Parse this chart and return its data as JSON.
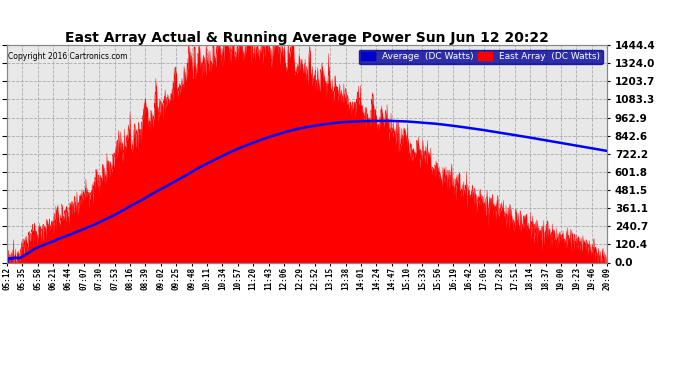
{
  "title": "East Array Actual & Running Average Power Sun Jun 12 20:22",
  "copyright": "Copyright 2016 Cartronics.com",
  "legend_avg": "Average  (DC Watts)",
  "legend_east": "East Array  (DC Watts)",
  "bg_color": "#ffffff",
  "plot_bg_color": "#e8e8e8",
  "grid_color": "#aaaaaa",
  "red_color": "#ff0000",
  "blue_color": "#0000ff",
  "title_color": "#000000",
  "yticks": [
    0.0,
    120.4,
    240.7,
    361.1,
    481.5,
    601.8,
    722.2,
    842.6,
    962.9,
    1083.3,
    1203.7,
    1324.0,
    1444.4
  ],
  "ymax": 1444.4,
  "xtick_labels": [
    "05:12",
    "05:35",
    "05:58",
    "06:21",
    "06:44",
    "07:07",
    "07:30",
    "07:53",
    "08:16",
    "08:39",
    "09:02",
    "09:25",
    "09:48",
    "10:11",
    "10:34",
    "10:57",
    "11:20",
    "11:43",
    "12:06",
    "12:29",
    "12:52",
    "13:15",
    "13:38",
    "14:01",
    "14:24",
    "14:47",
    "15:10",
    "15:33",
    "15:56",
    "16:19",
    "16:42",
    "17:05",
    "17:28",
    "17:51",
    "18:14",
    "18:37",
    "19:00",
    "19:23",
    "19:46",
    "20:09"
  ]
}
